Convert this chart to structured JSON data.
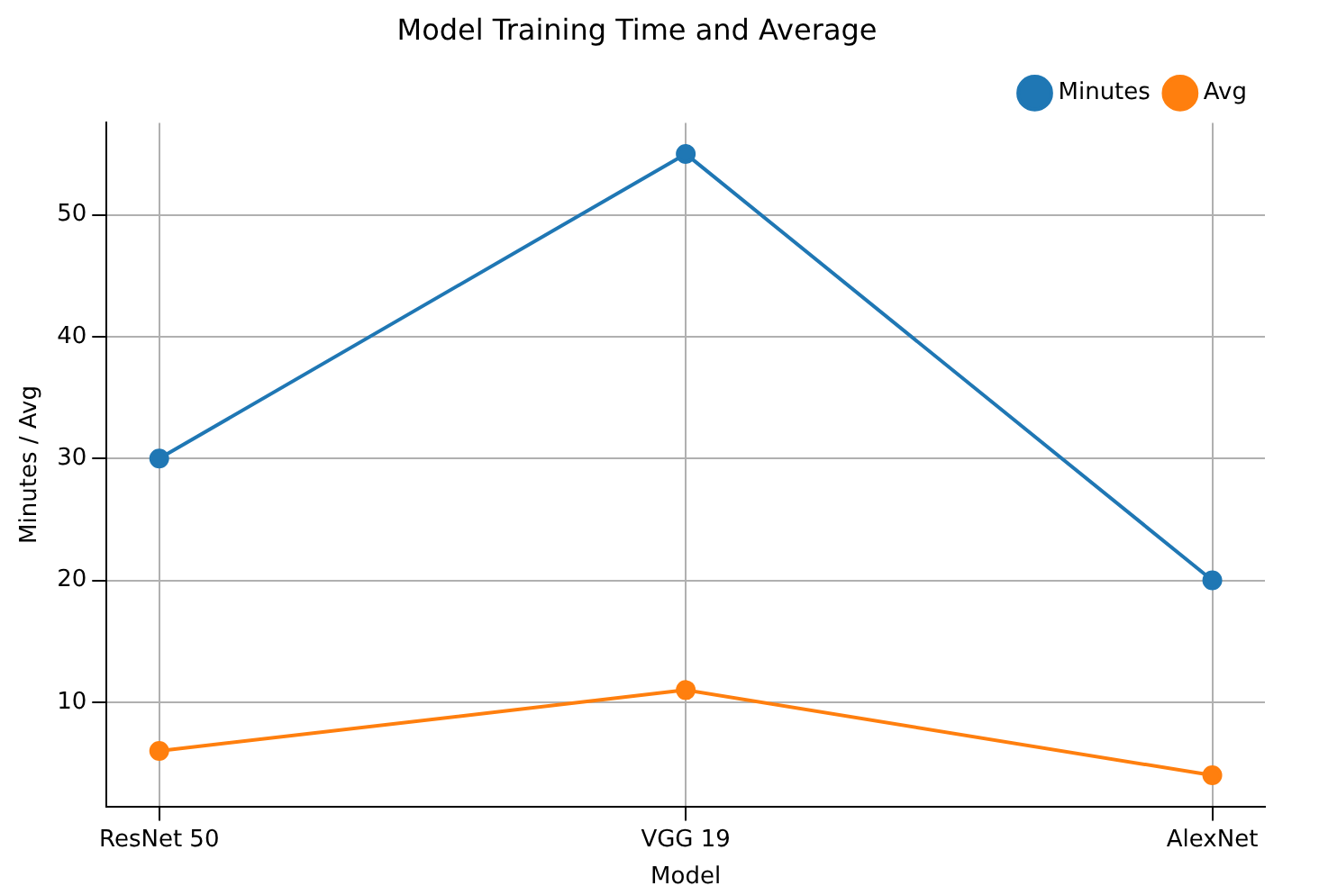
{
  "chart_data": {
    "type": "line",
    "title": "Model Training Time and Average",
    "xlabel": "Model",
    "ylabel": "Minutes / Avg",
    "categories": [
      "ResNet 50",
      "VGG 19",
      "AlexNet"
    ],
    "series": [
      {
        "name": "Minutes",
        "color": "#1f77b4",
        "values": [
          30,
          55,
          20
        ]
      },
      {
        "name": "Avg",
        "color": "#ff7f0e",
        "values": [
          6,
          11,
          4
        ]
      }
    ],
    "ylim": [
      1.45,
      57.55
    ],
    "yticks": [
      10,
      20,
      30,
      40,
      50
    ],
    "grid": true,
    "legend": "top right",
    "marker": "circle",
    "line_style": "solid"
  }
}
